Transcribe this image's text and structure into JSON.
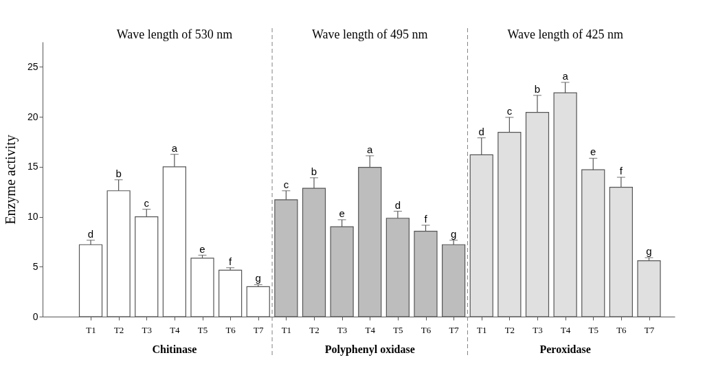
{
  "chart_data": {
    "type": "bar",
    "ylabel": "Enzyme activity",
    "categories": [
      "T1",
      "T2",
      "T3",
      "T4",
      "T5",
      "T6",
      "T7",
      "T1",
      "T2",
      "T3",
      "T4",
      "T5",
      "T6",
      "T7",
      "T1",
      "T2",
      "T3",
      "T4",
      "T5",
      "T6",
      "T7"
    ],
    "series": [
      {
        "name": "Chitinase",
        "color": "#ffffff",
        "values": [
          7.2,
          12.6,
          10.0,
          15.0,
          5.85,
          4.65,
          3.0,
          null,
          null,
          null,
          null,
          null,
          null,
          null,
          null,
          null,
          null,
          null,
          null,
          null,
          null
        ],
        "errors": [
          0.45,
          1.1,
          0.75,
          1.25,
          0.3,
          0.25,
          0.2,
          null,
          null,
          null,
          null,
          null,
          null,
          null,
          null,
          null,
          null,
          null,
          null,
          null,
          null
        ],
        "value_labels": [
          "d",
          "b",
          "c",
          "a",
          "e",
          "f",
          "g",
          null,
          null,
          null,
          null,
          null,
          null,
          null,
          null,
          null,
          null,
          null,
          null,
          null,
          null
        ]
      },
      {
        "name": "Polyphenyl oxidase",
        "color": "#bdbdbd",
        "values": [
          null,
          null,
          null,
          null,
          null,
          null,
          null,
          11.7,
          12.85,
          9.0,
          14.95,
          9.85,
          8.55,
          7.2,
          null,
          null,
          null,
          null,
          null,
          null,
          null
        ],
        "errors": [
          null,
          null,
          null,
          null,
          null,
          null,
          null,
          0.9,
          1.05,
          0.7,
          1.15,
          0.7,
          0.6,
          0.45,
          null,
          null,
          null,
          null,
          null,
          null,
          null
        ],
        "value_labels": [
          null,
          null,
          null,
          null,
          null,
          null,
          null,
          "c",
          "b",
          "e",
          "a",
          "d",
          "f",
          "g",
          null,
          null,
          null,
          null,
          null,
          null,
          null
        ]
      },
      {
        "name": "Peroxidase",
        "color": "#e0e0e0",
        "values": [
          null,
          null,
          null,
          null,
          null,
          null,
          null,
          null,
          null,
          null,
          null,
          null,
          null,
          null,
          16.2,
          18.45,
          20.45,
          22.4,
          14.7,
          12.95,
          5.6
        ],
        "errors": [
          null,
          null,
          null,
          null,
          null,
          null,
          null,
          null,
          null,
          null,
          null,
          null,
          null,
          null,
          1.7,
          1.5,
          1.7,
          1.05,
          1.15,
          1.0,
          0.3
        ],
        "value_labels": [
          null,
          null,
          null,
          null,
          null,
          null,
          null,
          null,
          null,
          null,
          null,
          null,
          null,
          null,
          "d",
          "c",
          "b",
          "a",
          "e",
          "f",
          "g"
        ]
      }
    ],
    "annotations": [
      "Wave length of 530 nm",
      "Wave length of 495 nm",
      "Wave length of 425 nm"
    ],
    "ylim": [
      0,
      27.5
    ],
    "yticks": [
      0,
      5,
      10,
      15,
      20,
      25
    ],
    "grid": false
  }
}
